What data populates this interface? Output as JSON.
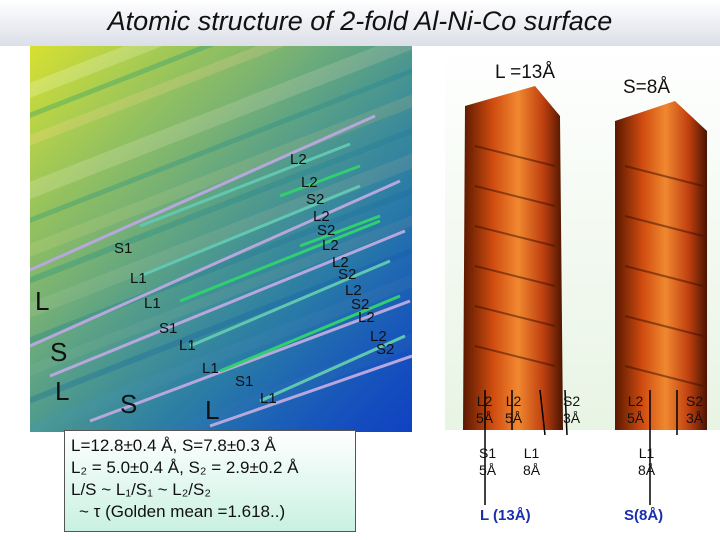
{
  "title": "Atomic structure of 2-fold Al-Ni-Co surface",
  "stm_image": {
    "top_labels": [
      "L2",
      "L2",
      "S2",
      "L2",
      "S2",
      "L2",
      "L2",
      "S2",
      "L2",
      "S2",
      "L2",
      "L2",
      "S2"
    ],
    "s1": "S1",
    "l1": "L1",
    "l1b": "L1",
    "s1b": "S1",
    "l1c": "L1",
    "l1d": "L1",
    "s1c": "S1",
    "l1e": "L1",
    "big_l1": "L",
    "big_s1": "S",
    "big_l2": "L",
    "big_s2": "S",
    "big_l3": "L"
  },
  "formula": {
    "line1": "L=12.8±0.4 Å, S=7.8±0.3 Å",
    "line2": "L₂ = 5.0±0.4 Å, S₂ = 2.9±0.2 Å",
    "line3": "L/S ~ L₁/S₁ ~ L₂/S₂",
    "line4": "~ τ (Golden mean =1.618..)"
  },
  "right": {
    "label_l": "L =13Å",
    "label_s": "S=8Å",
    "b1_l2a": "L2",
    "b1_l2a_v": "5Å",
    "b1_l2b": "L2",
    "b1_l2b_v": "5Å",
    "b1_s2": "S2",
    "b1_s2_v": "3Å",
    "b1_s1": "S1",
    "b1_s1_v": "5Å",
    "b1_l1": "L1",
    "b1_l1_v": "8Å",
    "b1_caption": "L (13Å)",
    "b2_l2": "L2",
    "b2_l2_v": "5Å",
    "b2_s2": "S2",
    "b2_s2_v": "3Å",
    "b2_l1": "L1",
    "b2_l1_v": "8Å",
    "b2_caption": "S(8Å)"
  }
}
